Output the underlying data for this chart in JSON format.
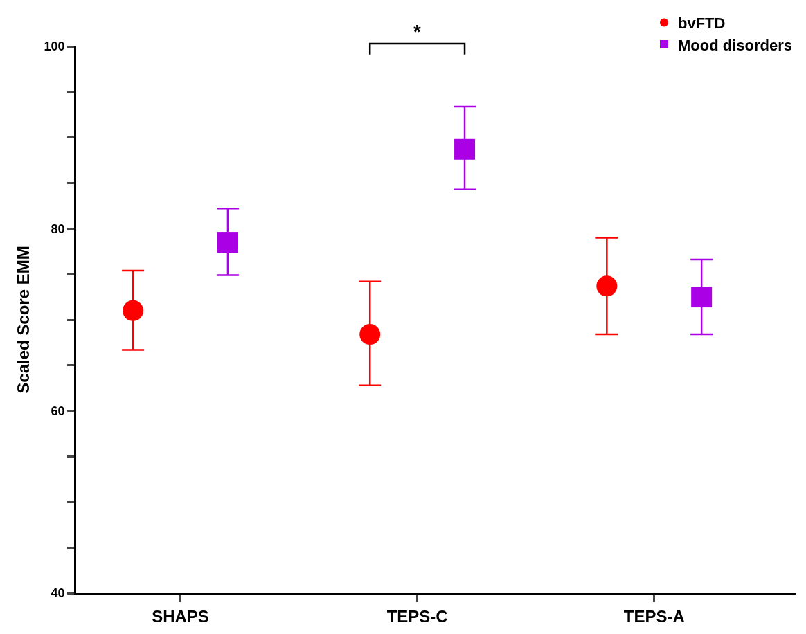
{
  "chart_data": {
    "type": "scatter",
    "ylabel": "Scaled Score EMM",
    "categories": [
      "SHAPS",
      "TEPS-C",
      "TEPS-A"
    ],
    "series": [
      {
        "name": "bvFTD",
        "color": "#ff0000",
        "marker": "circle",
        "values": [
          71.0,
          68.4,
          73.7
        ],
        "errors": [
          [
            66.7,
            75.4
          ],
          [
            62.8,
            74.2
          ],
          [
            68.4,
            79.0
          ]
        ]
      },
      {
        "name": "Mood disorders",
        "color": "#aa00e6",
        "marker": "square",
        "values": [
          78.5,
          88.7,
          72.5
        ],
        "errors": [
          [
            74.9,
            82.2
          ],
          [
            84.3,
            93.4
          ],
          [
            68.4,
            76.6
          ]
        ]
      }
    ],
    "ylim": [
      40,
      100
    ],
    "yticks": [
      40,
      {
        "value": 45,
        "label": null
      },
      {
        "value": 50,
        "label": null
      },
      {
        "value": 55,
        "label": null
      },
      60,
      {
        "value": 65,
        "label": null
      },
      {
        "value": 70,
        "label": null
      },
      {
        "value": 75,
        "label": null
      },
      80,
      {
        "value": 85,
        "label": null
      },
      {
        "value": 90,
        "label": null
      },
      {
        "value": 95,
        "label": null
      },
      100
    ],
    "annotations": [
      "*"
    ],
    "legend": "top right"
  }
}
